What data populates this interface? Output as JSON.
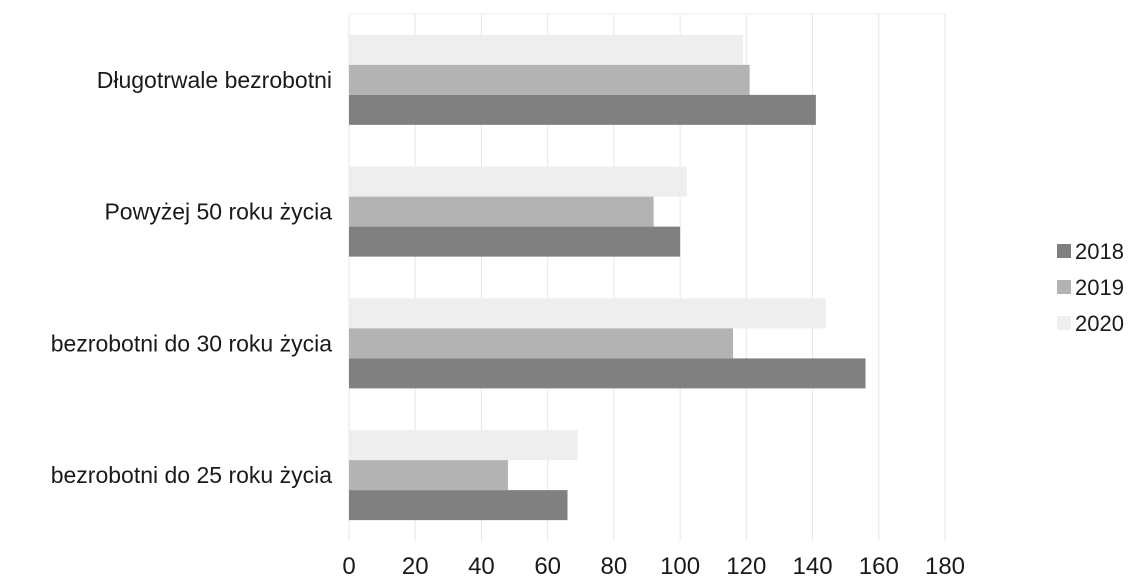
{
  "chart_data": {
    "type": "bar",
    "orientation": "horizontal",
    "title": "",
    "xlabel": "",
    "ylabel": "",
    "categories": [
      "Długotrwale bezrobotni",
      "Powyżej 50 roku życia",
      "bezrobotni do 30 roku życia",
      "bezrobotni do 25 roku życia"
    ],
    "series": [
      {
        "name": "2018",
        "color": "#808080",
        "values": [
          141,
          100,
          156,
          66
        ]
      },
      {
        "name": "2019",
        "color": "#b3b3b3",
        "values": [
          121,
          92,
          116,
          48
        ]
      },
      {
        "name": "2020",
        "color": "#eeeeee",
        "values": [
          119,
          102,
          144,
          69
        ]
      }
    ],
    "xlim": [
      0,
      180
    ],
    "xticks": [
      "0",
      "20",
      "40",
      "60",
      "80",
      "100",
      "120",
      "140",
      "160",
      "180"
    ],
    "grid": true,
    "legend_position": "right"
  }
}
